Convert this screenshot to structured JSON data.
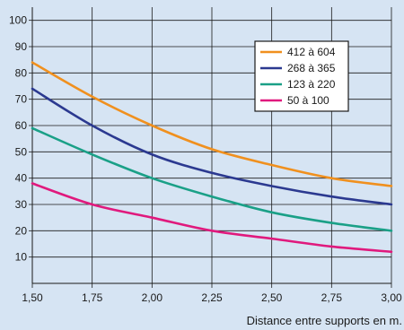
{
  "chart_data": {
    "type": "line",
    "xlabel": "Distance entre supports en m.",
    "ylabel": "",
    "title": "",
    "xlim": [
      1.5,
      3.0
    ],
    "ylim": [
      0,
      105
    ],
    "x_ticks": [
      1.5,
      1.75,
      2.0,
      2.25,
      2.5,
      2.75,
      3.0
    ],
    "x_tick_labels": [
      "1,50",
      "1,75",
      "2,00",
      "2,25",
      "2,50",
      "2,75",
      "3,00"
    ],
    "y_ticks": [
      10,
      20,
      30,
      40,
      50,
      60,
      70,
      80,
      90,
      100
    ],
    "y_tick_labels": [
      "10",
      "20",
      "30",
      "40",
      "50",
      "60",
      "70",
      "80",
      "90",
      "100"
    ],
    "grid": true,
    "legend_position": "top-right",
    "x": [
      1.5,
      1.75,
      2.0,
      2.25,
      2.5,
      2.75,
      3.0
    ],
    "series": [
      {
        "name": "412 à 604",
        "color": "#f0901e",
        "values": [
          84,
          71,
          60,
          51,
          45,
          40,
          37
        ]
      },
      {
        "name": "268 à 365",
        "color": "#2b3990",
        "values": [
          74,
          60,
          49,
          42,
          37,
          33,
          30
        ]
      },
      {
        "name": "123 à 220",
        "color": "#1aa087",
        "values": [
          59,
          49,
          40,
          33,
          27,
          23,
          20
        ]
      },
      {
        "name": "50 à 100",
        "color": "#e0197d",
        "values": [
          38,
          30,
          25,
          20,
          17,
          14,
          12
        ]
      }
    ]
  }
}
